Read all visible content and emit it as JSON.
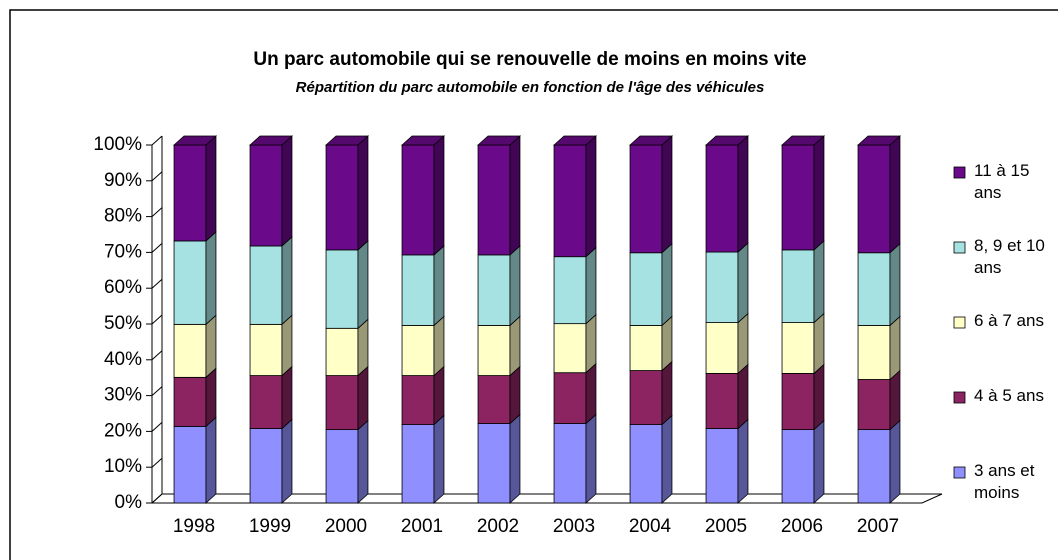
{
  "chart_data": {
    "type": "bar",
    "stacked": true,
    "three_d": true,
    "title": "Un parc automobile qui se renouvelle de moins en moins vite",
    "subtitle": "Répartition du parc automobile en fonction de l'âge des véhicules",
    "categories": [
      "1998",
      "1999",
      "2000",
      "2001",
      "2002",
      "2003",
      "2004",
      "2005",
      "2006",
      "2007"
    ],
    "series": [
      {
        "name": "3 ans et moins",
        "color": "#8f8fff",
        "values": [
          21.4,
          20.8,
          20.5,
          21.9,
          22.2,
          22.2,
          21.9,
          20.8,
          20.5,
          20.5
        ]
      },
      {
        "name": "4 à 5 ans",
        "color": "#8c2462",
        "values": [
          13.7,
          14.8,
          15.1,
          13.7,
          13.4,
          14.2,
          15.1,
          15.4,
          15.7,
          14.0
        ]
      },
      {
        "name": "6 à 7 ans",
        "color": "#ffffc8",
        "values": [
          14.8,
          14.3,
          13.2,
          14.0,
          14.0,
          13.7,
          12.6,
          14.2,
          14.2,
          15.1
        ]
      },
      {
        "name": "8, 9 et 10 ans",
        "color": "#a6e2e2",
        "values": [
          23.3,
          21.9,
          21.9,
          19.7,
          19.7,
          18.7,
          20.3,
          19.7,
          20.3,
          20.3
        ]
      },
      {
        "name": "11 à 15 ans",
        "color": "#6a0a8a",
        "values": [
          26.8,
          28.2,
          29.3,
          30.7,
          30.7,
          31.2,
          30.1,
          29.9,
          29.3,
          30.1
        ]
      }
    ],
    "ylim": [
      0,
      100
    ],
    "yticks": [
      {
        "value": 0,
        "label": "0%"
      },
      {
        "value": 10,
        "label": "10%"
      },
      {
        "value": 20,
        "label": "20%"
      },
      {
        "value": 30,
        "label": "30%"
      },
      {
        "value": 40,
        "label": "40%"
      },
      {
        "value": 50,
        "label": "50%"
      },
      {
        "value": 60,
        "label": "60%"
      },
      {
        "value": 70,
        "label": "70%"
      },
      {
        "value": 80,
        "label": "80%"
      },
      {
        "value": 90,
        "label": "90%"
      },
      {
        "value": 100,
        "label": "100%"
      }
    ],
    "legend": "right"
  }
}
